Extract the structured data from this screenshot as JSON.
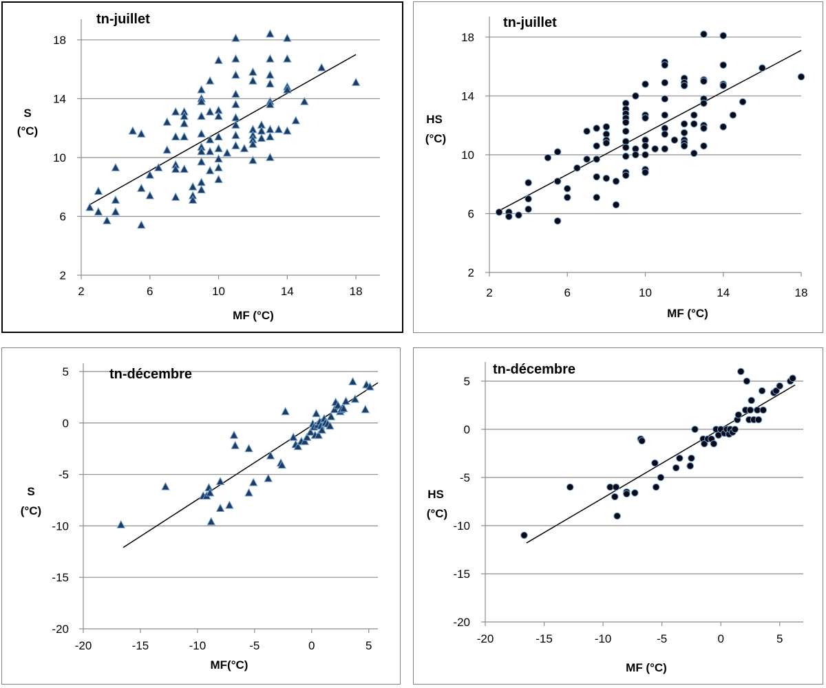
{
  "chart_data": [
    {
      "type": "scatter",
      "title": "tn-juillet",
      "xlabel": "MF (°C)",
      "ylabel": [
        "S",
        "(°C)"
      ],
      "xlim": [
        2,
        19.4
      ],
      "ylim": [
        2,
        19.4
      ],
      "xticks": [
        2,
        6,
        10,
        14,
        18
      ],
      "yticks": [
        2,
        6,
        10,
        14,
        18
      ],
      "grid": "horizontal",
      "marker": "triangle",
      "trendline": [
        [
          2.5,
          6.8
        ],
        [
          18,
          17
        ]
      ],
      "points": [
        [
          2.5,
          6.6
        ],
        [
          3,
          7.7
        ],
        [
          3,
          6.3
        ],
        [
          3.5,
          5.7
        ],
        [
          4,
          9.3
        ],
        [
          4,
          7.1
        ],
        [
          4,
          6.3
        ],
        [
          5,
          11.8
        ],
        [
          5.5,
          11.6
        ],
        [
          5.5,
          7.9
        ],
        [
          5.5,
          5.4
        ],
        [
          6,
          8.8
        ],
        [
          6,
          7.4
        ],
        [
          6.5,
          9.3
        ],
        [
          7,
          12.4
        ],
        [
          7,
          10.5
        ],
        [
          7.5,
          13.1
        ],
        [
          7.5,
          11.4
        ],
        [
          7.5,
          9.5
        ],
        [
          7.5,
          9.2
        ],
        [
          7.5,
          7.3
        ],
        [
          8,
          13.1
        ],
        [
          8,
          12.8
        ],
        [
          8,
          12.3
        ],
        [
          8,
          11.4
        ],
        [
          8,
          9.2
        ],
        [
          8.5,
          8
        ],
        [
          8.5,
          7.4
        ],
        [
          8.5,
          7.1
        ],
        [
          9,
          14.6
        ],
        [
          9,
          14
        ],
        [
          9,
          13.8
        ],
        [
          9,
          12.8
        ],
        [
          9,
          11.6
        ],
        [
          9,
          10.7
        ],
        [
          9,
          10.4
        ],
        [
          9,
          9.7
        ],
        [
          9,
          8.3
        ],
        [
          9,
          7.8
        ],
        [
          9.5,
          15.2
        ],
        [
          9.5,
          13.1
        ],
        [
          9.5,
          11.2
        ],
        [
          9.5,
          10.4
        ],
        [
          9.5,
          9.1
        ],
        [
          10,
          16.6
        ],
        [
          10,
          13.2
        ],
        [
          10,
          12.8
        ],
        [
          10,
          11.4
        ],
        [
          10,
          10.6
        ],
        [
          10,
          9.9
        ],
        [
          10,
          9.3
        ],
        [
          10,
          8.5
        ],
        [
          10.5,
          10.3
        ],
        [
          11,
          18.1
        ],
        [
          11,
          16.7
        ],
        [
          11,
          15.6
        ],
        [
          11,
          14.3
        ],
        [
          11,
          13.6
        ],
        [
          11,
          12.7
        ],
        [
          11,
          12.2
        ],
        [
          11,
          11.5
        ],
        [
          11,
          10.8
        ],
        [
          11.5,
          10.6
        ],
        [
          12,
          15.8
        ],
        [
          12,
          15.2
        ],
        [
          12,
          11.9
        ],
        [
          12,
          11.5
        ],
        [
          12,
          11.2
        ],
        [
          12,
          10.9
        ],
        [
          12,
          9.8
        ],
        [
          12.5,
          12.2
        ],
        [
          12.5,
          11.8
        ],
        [
          12.5,
          11.3
        ],
        [
          13,
          18.4
        ],
        [
          13,
          16.7
        ],
        [
          13,
          15.6
        ],
        [
          13,
          15
        ],
        [
          13,
          13.8
        ],
        [
          13,
          13.6
        ],
        [
          13,
          11.9
        ],
        [
          13,
          11.4
        ],
        [
          13,
          10
        ],
        [
          13.5,
          11.9
        ],
        [
          14,
          18.1
        ],
        [
          14,
          16.7
        ],
        [
          14,
          14.8
        ],
        [
          14,
          14.6
        ],
        [
          14,
          11.8
        ],
        [
          14.5,
          12.5
        ],
        [
          15,
          13.8
        ],
        [
          16,
          16.1
        ],
        [
          18,
          15.1
        ]
      ]
    },
    {
      "type": "scatter",
      "title": "tn-juillet",
      "xlabel": "MF (°C)",
      "ylabel": [
        "HS",
        "(°C)"
      ],
      "xlim": [
        2,
        18
      ],
      "ylim": [
        2,
        19.4
      ],
      "xticks": [
        2,
        6,
        10,
        14,
        18
      ],
      "yticks": [
        2,
        6,
        10,
        14,
        18
      ],
      "grid": "horizontal",
      "marker": "circle",
      "trendline": [
        [
          2.5,
          6.2
        ],
        [
          18,
          17.1
        ]
      ],
      "points": [
        [
          2.5,
          6.1
        ],
        [
          3,
          6.1
        ],
        [
          3,
          5.8
        ],
        [
          3.5,
          5.9
        ],
        [
          4,
          8.1
        ],
        [
          4,
          7
        ],
        [
          4,
          6.3
        ],
        [
          5,
          9.8
        ],
        [
          5.5,
          10.2
        ],
        [
          5.5,
          8.2
        ],
        [
          5.5,
          5.5
        ],
        [
          6,
          7.7
        ],
        [
          6,
          7.1
        ],
        [
          6.5,
          9.1
        ],
        [
          7,
          11.6
        ],
        [
          7,
          9.7
        ],
        [
          7.5,
          11.8
        ],
        [
          7.5,
          10.6
        ],
        [
          7.5,
          9.7
        ],
        [
          7.5,
          8.5
        ],
        [
          7.5,
          7.1
        ],
        [
          8,
          11.9
        ],
        [
          8,
          11.4
        ],
        [
          8,
          11
        ],
        [
          8,
          10.8
        ],
        [
          8,
          8.4
        ],
        [
          8.5,
          8.2
        ],
        [
          8.5,
          6.6
        ],
        [
          9,
          13.5
        ],
        [
          9,
          13.1
        ],
        [
          9,
          12.8
        ],
        [
          9,
          12.5
        ],
        [
          9,
          12.2
        ],
        [
          9,
          11.6
        ],
        [
          9,
          10.9
        ],
        [
          9,
          10.5
        ],
        [
          9,
          9.9
        ],
        [
          9,
          8.8
        ],
        [
          9,
          8.6
        ],
        [
          9.5,
          14
        ],
        [
          9.5,
          10.4
        ],
        [
          9.5,
          10
        ],
        [
          10,
          14.8
        ],
        [
          10,
          12.7
        ],
        [
          10,
          12.5
        ],
        [
          10,
          11
        ],
        [
          10,
          10.6
        ],
        [
          10,
          10
        ],
        [
          10,
          9
        ],
        [
          10,
          8.8
        ],
        [
          10.5,
          10.4
        ],
        [
          11,
          16.3
        ],
        [
          11,
          16.1
        ],
        [
          11,
          14.9
        ],
        [
          11,
          13.8
        ],
        [
          11,
          12.7
        ],
        [
          11,
          11.8
        ],
        [
          11,
          11.4
        ],
        [
          11,
          10.4
        ],
        [
          11.5,
          11
        ],
        [
          12,
          15.2
        ],
        [
          12,
          14.9
        ],
        [
          12,
          14.7
        ],
        [
          12,
          12.1
        ],
        [
          12,
          11.5
        ],
        [
          12,
          11
        ],
        [
          12,
          10.8
        ],
        [
          12,
          10.6
        ],
        [
          12.5,
          12.7
        ],
        [
          12.5,
          12.1
        ],
        [
          12.5,
          10.1
        ],
        [
          13,
          18.2
        ],
        [
          13,
          15.1
        ],
        [
          13,
          15
        ],
        [
          13,
          13.8
        ],
        [
          13,
          13.5
        ],
        [
          13,
          12
        ],
        [
          13,
          11.8
        ],
        [
          13,
          10.6
        ],
        [
          14,
          18.1
        ],
        [
          14,
          16.1
        ],
        [
          14,
          14.8
        ],
        [
          14,
          14.7
        ],
        [
          14,
          11.9
        ],
        [
          14.5,
          12.7
        ],
        [
          15,
          13.6
        ],
        [
          16,
          15.9
        ],
        [
          18,
          15.3
        ]
      ]
    },
    {
      "type": "scatter",
      "title": "tn-décembre",
      "xlabel": "MF(°C)",
      "ylabel": [
        "S",
        "(°C)"
      ],
      "xlim": [
        -20,
        5.8
      ],
      "ylim": [
        -20,
        5.8
      ],
      "xticks": [
        -20,
        -15,
        -10,
        -5,
        0,
        5
      ],
      "yticks": [
        -20,
        -15,
        -10,
        -5,
        0,
        5
      ],
      "grid": "horizontal",
      "marker": "triangle",
      "trendline": [
        [
          -16.5,
          -12.1
        ],
        [
          5.8,
          3.9
        ]
      ],
      "points": [
        [
          -16.7,
          -9.9
        ],
        [
          -12.8,
          -6.2
        ],
        [
          -9.5,
          -7.1
        ],
        [
          -9.2,
          -7.1
        ],
        [
          -9,
          -6.3
        ],
        [
          -8.9,
          -6.8
        ],
        [
          -8.8,
          -9.6
        ],
        [
          -8,
          -5.7
        ],
        [
          -8,
          -8.3
        ],
        [
          -7.2,
          -8
        ],
        [
          -6.8,
          -1.2
        ],
        [
          -6.7,
          -2.2
        ],
        [
          -5.5,
          -2.5
        ],
        [
          -5.5,
          -6.8
        ],
        [
          -5.1,
          -5.8
        ],
        [
          -3.8,
          -5.4
        ],
        [
          -3.6,
          -3.2
        ],
        [
          -2.7,
          -3.9
        ],
        [
          -2.6,
          -4.1
        ],
        [
          -2.3,
          1.1
        ],
        [
          -1.6,
          -1.4
        ],
        [
          -1.4,
          -2.1
        ],
        [
          -1.2,
          -2.3
        ],
        [
          -0.9,
          -1.8
        ],
        [
          -0.6,
          -1.8
        ],
        [
          -0.4,
          -1.4
        ],
        [
          -0.1,
          -0.9
        ],
        [
          0.1,
          -0.1
        ],
        [
          0.2,
          -0.4
        ],
        [
          0.3,
          -1.2
        ],
        [
          0.4,
          0.9
        ],
        [
          0.5,
          -0.2
        ],
        [
          0.6,
          -1.2
        ],
        [
          0.7,
          0.1
        ],
        [
          0.8,
          -0.3
        ],
        [
          0.9,
          -0.7
        ],
        [
          1.1,
          0.4
        ],
        [
          1.2,
          0
        ],
        [
          1.4,
          -0.1
        ],
        [
          1.6,
          -0.3
        ],
        [
          1.7,
          0.6
        ],
        [
          2,
          1.3
        ],
        [
          2.1,
          2
        ],
        [
          2.3,
          1.7
        ],
        [
          2.5,
          1.1
        ],
        [
          2.6,
          1.3
        ],
        [
          2.8,
          1.4
        ],
        [
          3,
          2.1
        ],
        [
          3.6,
          4
        ],
        [
          3.8,
          2.3
        ],
        [
          4.7,
          1.3
        ],
        [
          4.8,
          3.7
        ],
        [
          5.1,
          3.5
        ]
      ]
    },
    {
      "type": "scatter",
      "title": "tn-décembre",
      "xlabel": "MF (°C)",
      "ylabel": [
        "HS",
        "(°C)"
      ],
      "xlim": [
        -20,
        7
      ],
      "ylim": [
        -20,
        7
      ],
      "xticks": [
        -20,
        -15,
        -10,
        -5,
        0,
        5
      ],
      "yticks": [
        -20,
        -15,
        -10,
        -5,
        0,
        5
      ],
      "grid": "horizontal",
      "marker": "circle",
      "trendline": [
        [
          -16.5,
          -11.8
        ],
        [
          6.3,
          4.6
        ]
      ],
      "points": [
        [
          -16.7,
          -11
        ],
        [
          -12.8,
          -6
        ],
        [
          -9.4,
          -6
        ],
        [
          -9,
          -7
        ],
        [
          -8.9,
          -6
        ],
        [
          -8.8,
          -9
        ],
        [
          -8,
          -6.5
        ],
        [
          -8,
          -6.7
        ],
        [
          -7.3,
          -6.6
        ],
        [
          -6.8,
          -1
        ],
        [
          -6.7,
          -1.2
        ],
        [
          -5.6,
          -3.5
        ],
        [
          -5.5,
          -6
        ],
        [
          -5.1,
          -5
        ],
        [
          -3.8,
          -4
        ],
        [
          -3.5,
          -3
        ],
        [
          -2.6,
          -3.8
        ],
        [
          -2.5,
          -3
        ],
        [
          -2.2,
          0
        ],
        [
          -1.5,
          -1
        ],
        [
          -1.4,
          -1.5
        ],
        [
          -1.1,
          -1
        ],
        [
          -0.8,
          -1
        ],
        [
          -0.6,
          -1.5
        ],
        [
          -0.4,
          0
        ],
        [
          -0.2,
          -0.6
        ],
        [
          0,
          0
        ],
        [
          0.3,
          -0.4
        ],
        [
          0.5,
          0
        ],
        [
          0.7,
          -0.5
        ],
        [
          0.8,
          0
        ],
        [
          1,
          -0.3
        ],
        [
          1.2,
          0
        ],
        [
          1.4,
          1
        ],
        [
          1.5,
          1.5
        ],
        [
          1.7,
          6
        ],
        [
          2.1,
          2
        ],
        [
          2.2,
          5
        ],
        [
          2.4,
          1
        ],
        [
          2.5,
          2
        ],
        [
          2.6,
          3
        ],
        [
          2.8,
          1
        ],
        [
          3.1,
          2
        ],
        [
          3.2,
          1
        ],
        [
          3.5,
          4
        ],
        [
          3.6,
          2
        ],
        [
          4.5,
          3.8
        ],
        [
          4.7,
          4
        ],
        [
          5,
          4.5
        ],
        [
          5.9,
          5
        ],
        [
          6.1,
          5.3
        ]
      ]
    }
  ]
}
